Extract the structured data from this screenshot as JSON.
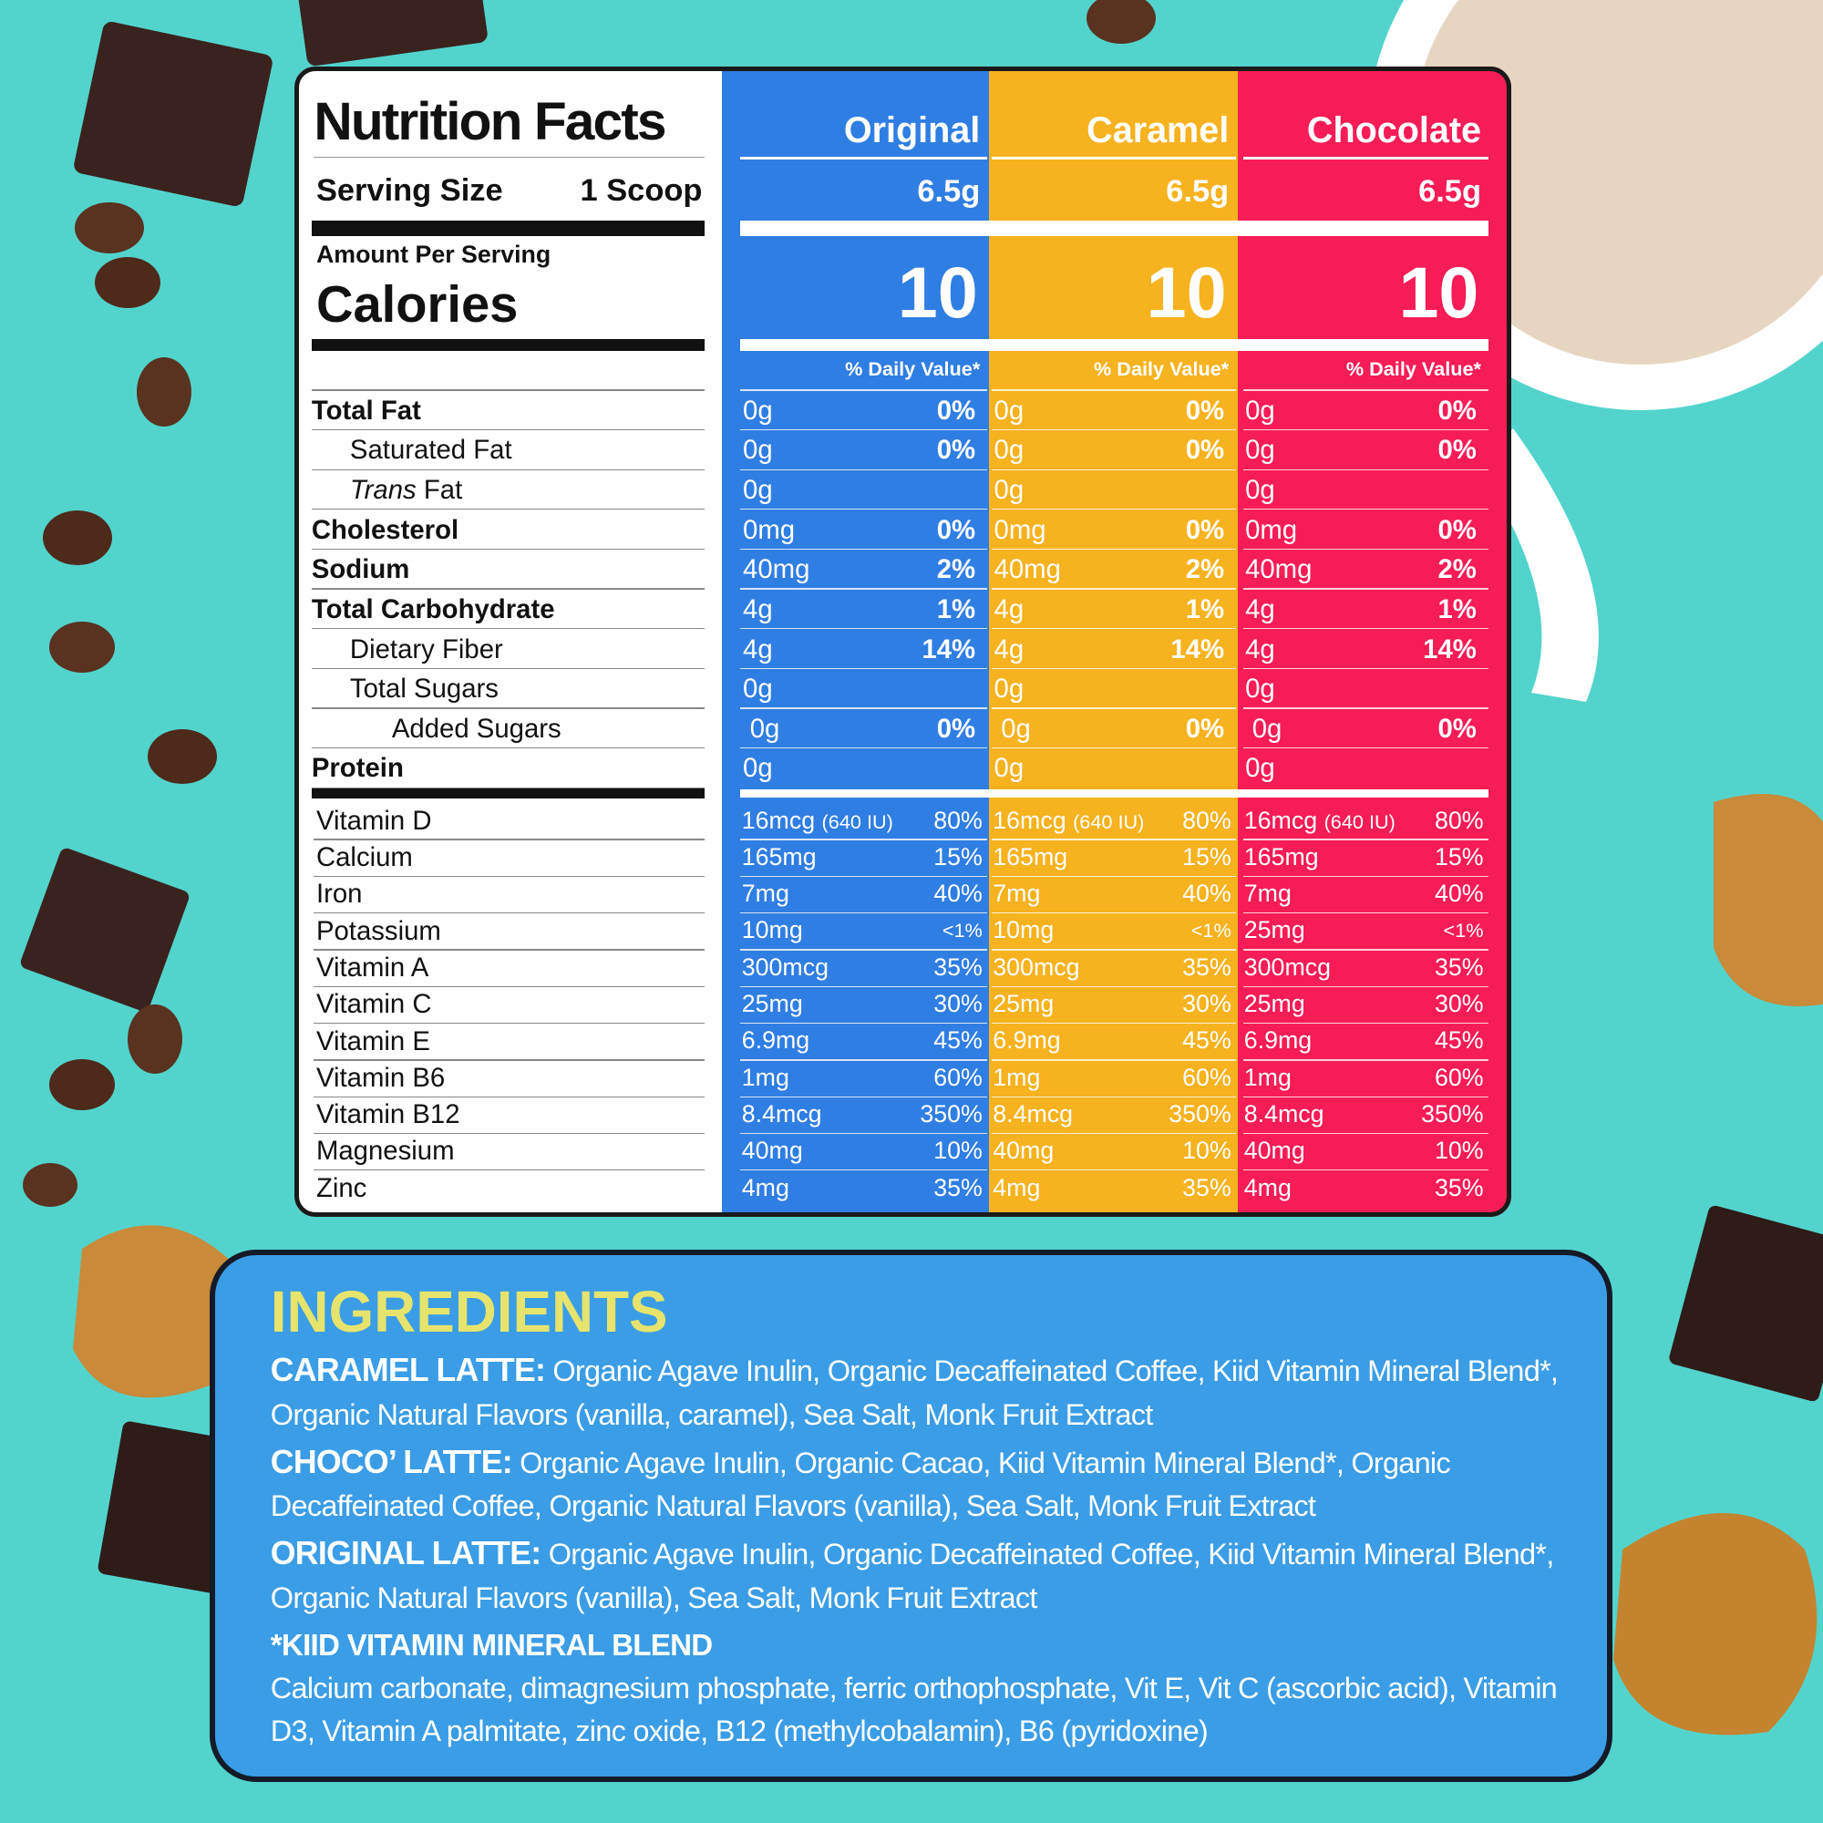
{
  "nutrition": {
    "title": "Nutrition Facts",
    "serving_size_label": "Serving Size",
    "serving_size": "1 Scoop",
    "amount_per_serving": "Amount Per Serving",
    "calories_label": "Calories",
    "daily_value_label": "% Daily Value*",
    "flavors": [
      {
        "name": "Original",
        "serving": "6.5g",
        "calories": 10,
        "color": "#2f7ee3"
      },
      {
        "name": "Caramel",
        "serving": "6.5g",
        "calories": 10,
        "color": "#f7b21f"
      },
      {
        "name": "Chocolate",
        "serving": "6.5g",
        "calories": 10,
        "color": "#f61c55"
      }
    ],
    "nutrients": [
      {
        "name": "Total Fat",
        "bold": true,
        "level": 0,
        "cells": [
          {
            "amount": "0g",
            "dv": "0%"
          },
          {
            "amount": "0g",
            "dv": "0%"
          },
          {
            "amount": "0g",
            "dv": "0%"
          }
        ]
      },
      {
        "name": "Saturated Fat",
        "bold": false,
        "level": 1,
        "cells": [
          {
            "amount": "0g",
            "dv": "0%"
          },
          {
            "amount": "0g",
            "dv": "0%"
          },
          {
            "amount": "0g",
            "dv": "0%"
          }
        ]
      },
      {
        "name_italic": "Trans",
        "name": "Fat",
        "bold": false,
        "level": 1,
        "cells": [
          {
            "amount": "0g"
          },
          {
            "amount": "0g"
          },
          {
            "amount": "0g"
          }
        ]
      },
      {
        "name": "Cholesterol",
        "bold": true,
        "level": 0,
        "cells": [
          {
            "amount": "0mg",
            "dv": "0%"
          },
          {
            "amount": "0mg",
            "dv": "0%"
          },
          {
            "amount": "0mg",
            "dv": "0%"
          }
        ]
      },
      {
        "name": "Sodium",
        "bold": true,
        "level": 0,
        "cells": [
          {
            "amount": "40mg",
            "dv": "2%"
          },
          {
            "amount": "40mg",
            "dv": "2%"
          },
          {
            "amount": "40mg",
            "dv": "2%"
          }
        ]
      },
      {
        "name": "Total Carbohydrate",
        "bold": true,
        "level": 0,
        "cells": [
          {
            "amount": "4g",
            "dv": "1%"
          },
          {
            "amount": "4g",
            "dv": "1%"
          },
          {
            "amount": "4g",
            "dv": "1%"
          }
        ]
      },
      {
        "name": "Dietary Fiber",
        "bold": false,
        "level": 1,
        "cells": [
          {
            "amount": "4g",
            "dv": "14%"
          },
          {
            "amount": "4g",
            "dv": "14%"
          },
          {
            "amount": "4g",
            "dv": "14%"
          }
        ]
      },
      {
        "name": "Total Sugars",
        "bold": false,
        "level": 1,
        "cells": [
          {
            "amount": "0g"
          },
          {
            "amount": "0g"
          },
          {
            "amount": "0g"
          }
        ]
      },
      {
        "name": "Added Sugars",
        "bold": false,
        "level": 2,
        "cells": [
          {
            "amount": "0g",
            "dv": "0%"
          },
          {
            "amount": "0g",
            "dv": "0%"
          },
          {
            "amount": "0g",
            "dv": "0%"
          }
        ]
      },
      {
        "name": "Protein",
        "bold": true,
        "level": 0,
        "cells": [
          {
            "amount": "0g"
          },
          {
            "amount": "0g"
          },
          {
            "amount": "0g"
          }
        ]
      }
    ],
    "vitamins": [
      {
        "name": "Vitamin D",
        "cells": [
          {
            "amount": "16mcg",
            "note": "(640 IU)",
            "dv": "80%"
          },
          {
            "amount": "16mcg",
            "note": "(640 IU)",
            "dv": "80%"
          },
          {
            "amount": "16mcg",
            "note": "(640 IU)",
            "dv": "80%"
          }
        ]
      },
      {
        "name": "Calcium",
        "cells": [
          {
            "amount": "165mg",
            "dv": "15%"
          },
          {
            "amount": "165mg",
            "dv": "15%"
          },
          {
            "amount": "165mg",
            "dv": "15%"
          }
        ]
      },
      {
        "name": "Iron",
        "cells": [
          {
            "amount": "7mg",
            "dv": "40%"
          },
          {
            "amount": "7mg",
            "dv": "40%"
          },
          {
            "amount": "7mg",
            "dv": "40%"
          }
        ]
      },
      {
        "name": "Potassium",
        "cells": [
          {
            "amount": "10mg",
            "dv": "<1%"
          },
          {
            "amount": "10mg",
            "dv": "<1%"
          },
          {
            "amount": "25mg",
            "dv": "<1%"
          }
        ]
      },
      {
        "name": "Vitamin A",
        "cells": [
          {
            "amount": "300mcg",
            "dv": "35%"
          },
          {
            "amount": "300mcg",
            "dv": "35%"
          },
          {
            "amount": "300mcg",
            "dv": "35%"
          }
        ]
      },
      {
        "name": "Vitamin C",
        "cells": [
          {
            "amount": "25mg",
            "dv": "30%"
          },
          {
            "amount": "25mg",
            "dv": "30%"
          },
          {
            "amount": "25mg",
            "dv": "30%"
          }
        ]
      },
      {
        "name": "Vitamin E",
        "cells": [
          {
            "amount": "6.9mg",
            "dv": "45%"
          },
          {
            "amount": "6.9mg",
            "dv": "45%"
          },
          {
            "amount": "6.9mg",
            "dv": "45%"
          }
        ]
      },
      {
        "name": "Vitamin B6",
        "cells": [
          {
            "amount": "1mg",
            "dv": "60%"
          },
          {
            "amount": "1mg",
            "dv": "60%"
          },
          {
            "amount": "1mg",
            "dv": "60%"
          }
        ]
      },
      {
        "name": "Vitamin B12",
        "cells": [
          {
            "amount": "8.4mcg",
            "dv": "350%"
          },
          {
            "amount": "8.4mcg",
            "dv": "350%"
          },
          {
            "amount": "8.4mcg",
            "dv": "350%"
          }
        ]
      },
      {
        "name": "Magnesium",
        "cells": [
          {
            "amount": "40mg",
            "dv": "10%"
          },
          {
            "amount": "40mg",
            "dv": "10%"
          },
          {
            "amount": "40mg",
            "dv": "10%"
          }
        ]
      },
      {
        "name": "Zinc",
        "cells": [
          {
            "amount": "4mg",
            "dv": "35%"
          },
          {
            "amount": "4mg",
            "dv": "35%"
          },
          {
            "amount": "4mg",
            "dv": "35%"
          }
        ]
      }
    ]
  },
  "ingredients": {
    "title": "INGREDIENTS",
    "items": [
      {
        "label": "CARAMEL LATTE:",
        "text": "Organic Agave Inulin, Organic Decaffeinated Coffee, Kiid Vitamin Mineral Blend*, Organic Natural Flavors (vanilla, caramel), Sea Salt, Monk Fruit Extract"
      },
      {
        "label": "CHOCO’ LATTE:",
        "text": "Organic Agave Inulin, Organic Cacao, Kiid Vitamin Mineral Blend*, Organic Decaffeinated Coffee, Organic Natural Flavors (vanilla), Sea Salt, Monk Fruit Extract"
      },
      {
        "label": "ORIGINAL LATTE:",
        "text": "Organic Agave Inulin, Organic Decaffeinated Coffee, Kiid Vitamin Mineral Blend*, Organic Natural Flavors (vanilla), Sea Salt, Monk Fruit Extract"
      }
    ],
    "blend_title": "*KIID VITAMIN MINERAL BLEND",
    "blend_text": "Calcium carbonate, dimagnesium phosphate, ferric orthophosphate, Vit E, Vit C (ascorbic acid), Vitamin D3, Vitamin A palmitate, zinc oxide, B12 (methylcobalamin), B6 (pyridoxine)"
  }
}
